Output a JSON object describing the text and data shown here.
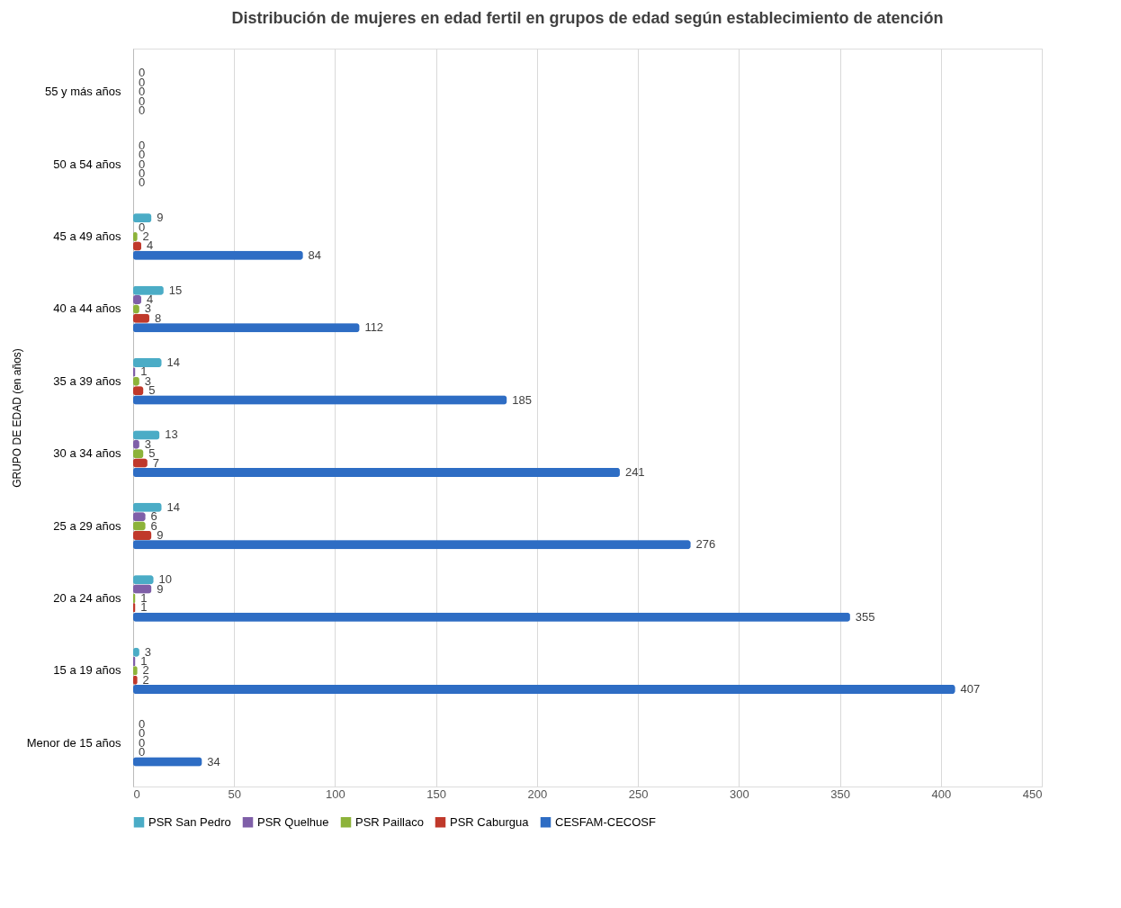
{
  "chart_data": {
    "type": "bar",
    "orientation": "horizontal",
    "title": "Distribución de mujeres en edad fertil en grupos de edad según establecimiento de atención",
    "ylabel": "GRUPO DE EDAD (en años)",
    "categories": [
      "55 y más años",
      "50 a 54 años",
      "45 a 49 años",
      "40 a 44 años",
      "35 a 39 años",
      "30 a 34 años",
      "25 a 29 años",
      "20 a 24 años",
      "15 a 19 años",
      "Menor de 15 años"
    ],
    "series": [
      {
        "name": "PSR San Pedro",
        "color": "#4bacc6",
        "values": [
          0,
          0,
          9,
          15,
          14,
          13,
          14,
          10,
          3,
          0
        ]
      },
      {
        "name": "PSR Quelhue",
        "color": "#7f5fa8",
        "values": [
          0,
          0,
          0,
          4,
          1,
          3,
          6,
          9,
          1,
          0
        ]
      },
      {
        "name": "PSR Paillaco",
        "color": "#8db33a",
        "values": [
          0,
          0,
          2,
          3,
          3,
          5,
          6,
          1,
          2,
          0
        ]
      },
      {
        "name": "PSR Caburgua",
        "color": "#c0392b",
        "values": [
          0,
          0,
          4,
          8,
          5,
          7,
          9,
          1,
          2,
          0
        ]
      },
      {
        "name": "CESFAM-CECOSF",
        "color": "#2e6dc4",
        "values": [
          0,
          0,
          84,
          112,
          185,
          241,
          276,
          355,
          407,
          34
        ]
      }
    ],
    "xlim": [
      0,
      450
    ],
    "xticks": [
      0,
      50,
      100,
      150,
      200,
      250,
      300,
      350,
      400,
      450
    ],
    "grid": "x",
    "legend": "bottom",
    "data_labels": true
  }
}
